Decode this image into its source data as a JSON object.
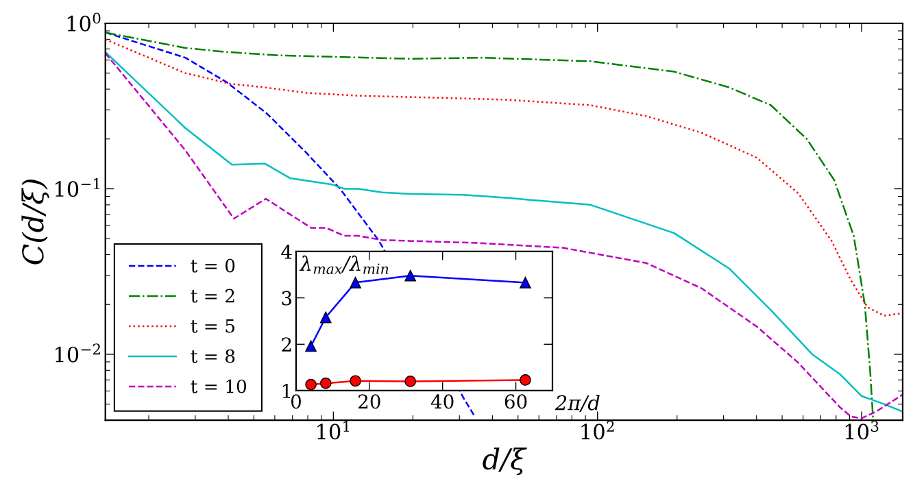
{
  "chart_data": [
    {
      "type": "line",
      "xlabel": "d/ξ",
      "ylabel": "C(d/ξ)",
      "log": "xy",
      "xlim": [
        1.37,
        1430
      ],
      "ylim": [
        0.004,
        1
      ],
      "xticks": [
        {
          "value": 10,
          "label": "10$^{1}$"
        },
        {
          "value": 100,
          "label": "10$^{2}$"
        },
        {
          "value": 1000,
          "label": "10$^{3}$"
        }
      ],
      "yticks": [
        {
          "value": 0.01,
          "label": "10$^{−2}$"
        },
        {
          "value": 0.1,
          "label": "10$^{−1}$"
        },
        {
          "value": 1,
          "label": "10$^{0}$"
        }
      ],
      "legend": "bottom left",
      "grid": false,
      "series": [
        {
          "name": "t = 0",
          "color": "#0000ff",
          "line_style": "dashed",
          "x": [
            1.37,
            2.75,
            3.95,
            5.6,
            7.9,
            10.6,
            14.8,
            15.4,
            31,
            34
          ],
          "values": [
            0.88,
            0.62,
            0.44,
            0.285,
            0.165,
            0.1,
            0.049,
            0.044,
            0.0055,
            0.0043
          ]
        },
        {
          "name": "t = 2",
          "color": "#008000",
          "line_style": "dashdot",
          "x": [
            1.37,
            2.75,
            3.95,
            6.27,
            10.9,
            19.7,
            36,
            94,
            195,
            315,
            453,
            620,
            787,
            933,
            1028,
            1079,
            1104
          ],
          "values": [
            0.88,
            0.71,
            0.67,
            0.64,
            0.625,
            0.61,
            0.62,
            0.59,
            0.51,
            0.41,
            0.32,
            0.2,
            0.113,
            0.052,
            0.02,
            0.0076,
            0.0041
          ]
        },
        {
          "name": "t = 5",
          "color": "#ff0000",
          "line_style": "dotted",
          "x": [
            1.37,
            2.75,
            4.1,
            5.5,
            7.9,
            12.4,
            24.7,
            45.7,
            94,
            153,
            248,
            401,
            575,
            769,
            912,
            1054,
            1216,
            1430
          ],
          "values": [
            0.8,
            0.5,
            0.43,
            0.41,
            0.38,
            0.365,
            0.355,
            0.345,
            0.32,
            0.275,
            0.218,
            0.154,
            0.094,
            0.0485,
            0.0279,
            0.0192,
            0.0171,
            0.0177
          ]
        },
        {
          "name": "t = 8",
          "color": "#00bfbf",
          "line_style": "solid",
          "x": [
            1.37,
            2.75,
            4.13,
            5.5,
            6.85,
            9.9,
            11,
            12.4,
            15.3,
            19.7,
            31,
            45.7,
            94,
            195,
            315,
            453,
            650,
            826,
            998,
            1216,
            1430
          ],
          "values": [
            0.67,
            0.233,
            0.14,
            0.142,
            0.116,
            0.106,
            0.1,
            0.1,
            0.095,
            0.093,
            0.092,
            0.088,
            0.08,
            0.054,
            0.033,
            0.0185,
            0.01,
            0.0076,
            0.0056,
            0.005,
            0.0045
          ]
        },
        {
          "name": "t = 10",
          "color": "#bf00bf",
          "line_style": "dashed",
          "x": [
            1.37,
            2.75,
            4.2,
            5.55,
            8.25,
            9.4,
            11,
            12.4,
            15.3,
            36,
            74,
            153,
            248,
            401,
            575,
            826,
            912,
            998,
            1132,
            1430
          ],
          "values": [
            0.66,
            0.171,
            0.066,
            0.087,
            0.058,
            0.058,
            0.052,
            0.052,
            0.049,
            0.047,
            0.044,
            0.0356,
            0.025,
            0.0147,
            0.0089,
            0.0048,
            0.0042,
            0.0041,
            0.0045,
            0.0057
          ]
        }
      ]
    },
    {
      "type": "line",
      "xlabel": "2π/d",
      "ylabel": "λ$_{max}$/λ$_{min}$",
      "xlim": [
        0,
        70
      ],
      "ylim": [
        1,
        4
      ],
      "xticks": [
        0,
        20,
        40,
        60
      ],
      "yticks": [
        1,
        2,
        3,
        4
      ],
      "grid": false,
      "series": [
        {
          "color": "#0000ff",
          "marker": "triangle",
          "line_style": "solid",
          "x": [
            4.05,
            8.1,
            16.2,
            31.2,
            62.6
          ],
          "values": [
            1.96,
            2.58,
            3.33,
            3.48,
            3.33
          ]
        },
        {
          "color": "#ff0000",
          "marker": "circle",
          "line_style": "solid",
          "x": [
            4.05,
            8.1,
            16.2,
            31.2,
            62.6
          ],
          "values": [
            1.13,
            1.16,
            1.21,
            1.2,
            1.23
          ]
        }
      ]
    }
  ]
}
